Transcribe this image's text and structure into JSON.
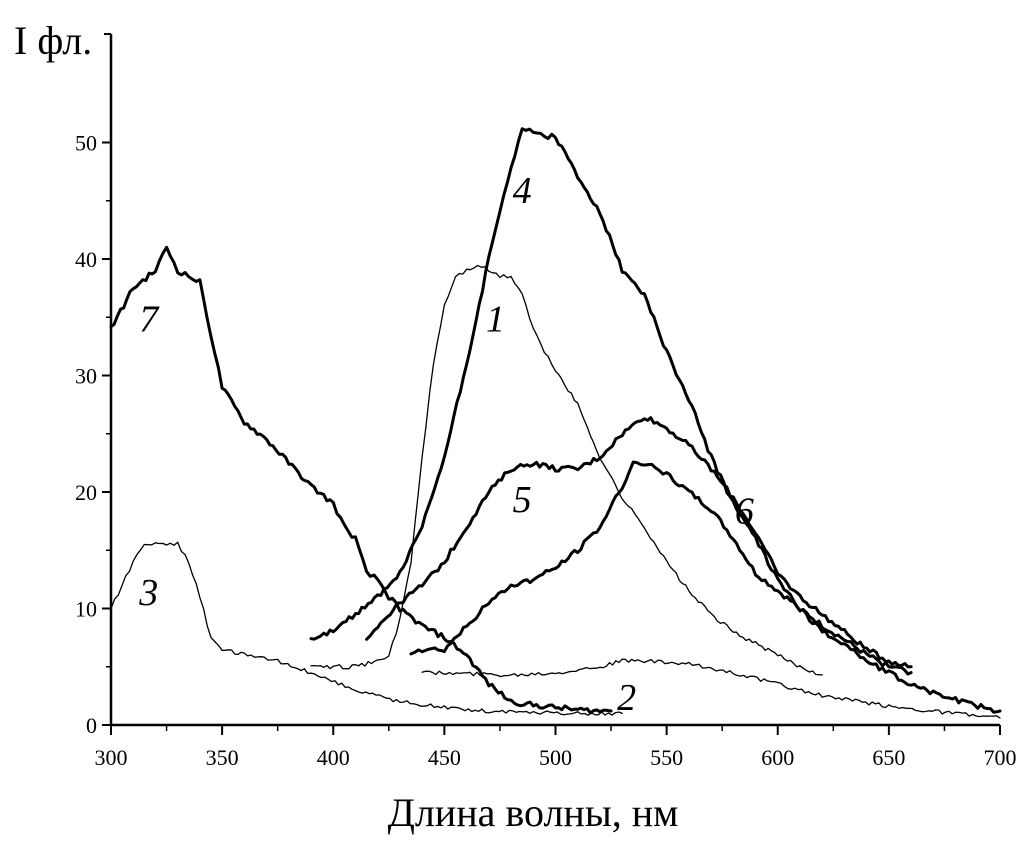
{
  "chart_data": {
    "type": "line",
    "title": "",
    "xlabel": "Длина волны, нм",
    "ylabel": "I фл.",
    "xlim": [
      300,
      700
    ],
    "ylim": [
      0,
      52
    ],
    "xticks": [
      300,
      350,
      400,
      450,
      500,
      550,
      600,
      650,
      700
    ],
    "yticks": [
      0,
      10,
      20,
      30,
      40,
      50
    ],
    "grid": false,
    "legend": "none",
    "series": [
      {
        "name": "1",
        "weight": "thin",
        "x": [
          390,
          400,
          410,
          420,
          425,
          430,
          435,
          440,
          445,
          450,
          455,
          460,
          465,
          470,
          475,
          480,
          485,
          490,
          495,
          500,
          510,
          520,
          530,
          540,
          550,
          560,
          570,
          580,
          590,
          600,
          610,
          620
        ],
        "y": [
          5,
          5,
          5,
          5.5,
          6,
          9,
          14,
          23,
          31,
          36,
          38.5,
          39,
          39.5,
          39,
          38.5,
          38.5,
          37,
          34,
          32,
          30.5,
          27.5,
          23,
          19.5,
          17,
          14,
          11.5,
          9.5,
          8,
          7,
          6,
          5,
          4.3
        ],
        "label_at": [
          473,
          35
        ]
      },
      {
        "name": "2",
        "weight": "thin",
        "x": [
          440,
          460,
          480,
          500,
          520,
          530,
          540,
          560,
          580,
          600,
          620,
          650,
          680,
          700
        ],
        "y": [
          4.5,
          4.4,
          4.3,
          4.5,
          5,
          5.5,
          5.5,
          5.2,
          4.5,
          3.5,
          2.5,
          1.6,
          1,
          0.6
        ],
        "label_at": [
          532,
          2.5
        ]
      },
      {
        "name": "3",
        "weight": "thin",
        "x": [
          300,
          305,
          310,
          315,
          320,
          325,
          330,
          335,
          340,
          345,
          350,
          360,
          375,
          390,
          410,
          430,
          450,
          470,
          490,
          510,
          530
        ],
        "y": [
          10,
          12,
          14,
          15.5,
          15.7,
          15.4,
          15.6,
          14,
          11,
          7.5,
          6.5,
          6,
          5.5,
          4.5,
          3,
          2,
          1.5,
          1.2,
          1.1,
          1,
          1
        ],
        "label_at": [
          317,
          11.5
        ]
      },
      {
        "name": "4",
        "weight": "thick",
        "x": [
          390,
          400,
          410,
          420,
          430,
          440,
          450,
          460,
          470,
          475,
          480,
          485,
          490,
          495,
          500,
          510,
          520,
          530,
          540,
          550,
          560,
          570,
          580,
          590,
          600,
          610,
          620,
          630,
          640,
          650,
          660,
          670,
          680,
          690,
          700
        ],
        "y": [
          7.5,
          8,
          9.5,
          11,
          13,
          17,
          23,
          31,
          40,
          44,
          48,
          51,
          51,
          50.5,
          50.5,
          47,
          44,
          39,
          37,
          32,
          28,
          23,
          19,
          16,
          12.5,
          10,
          8,
          7,
          5.5,
          4.5,
          3.5,
          2.8,
          2.2,
          1.6,
          1.2
        ],
        "label_at": [
          485,
          46
        ]
      },
      {
        "name": "5",
        "weight": "thick",
        "x": [
          415,
          420,
          430,
          440,
          450,
          460,
          470,
          480,
          490,
          500,
          510,
          520,
          530,
          540,
          550,
          560,
          570,
          580,
          590,
          600,
          610,
          620,
          630,
          640,
          650,
          660
        ],
        "y": [
          7.5,
          8.5,
          10.5,
          12,
          14,
          17,
          20,
          22,
          22.5,
          22,
          22,
          23,
          25,
          26.5,
          25.5,
          24,
          22,
          19.5,
          16.5,
          13,
          11,
          9.5,
          8,
          6.5,
          5.5,
          5
        ],
        "label_at": [
          485,
          19.5
        ]
      },
      {
        "name": "6",
        "weight": "thick",
        "x": [
          435,
          440,
          450,
          460,
          470,
          480,
          490,
          500,
          510,
          520,
          530,
          535,
          540,
          545,
          550,
          560,
          570,
          580,
          590,
          600,
          610,
          620,
          630,
          640,
          650,
          660
        ],
        "y": [
          6.3,
          6.5,
          6.5,
          8.5,
          10.5,
          12,
          12.5,
          13.5,
          15,
          17,
          20.5,
          22.5,
          22.5,
          22,
          21.5,
          20,
          18.5,
          16,
          13,
          11.5,
          10,
          8.5,
          7.3,
          6,
          5,
          4.5
        ],
        "label_at": [
          585,
          18.5
        ]
      },
      {
        "name": "7",
        "weight": "thick",
        "x": [
          300,
          310,
          320,
          325,
          330,
          335,
          340,
          345,
          350,
          360,
          370,
          380,
          390,
          400,
          405,
          410,
          415,
          420,
          425,
          430,
          440,
          450,
          460,
          470,
          480,
          490,
          500,
          510,
          520,
          525
        ],
        "y": [
          34,
          37.5,
          39,
          41,
          39,
          38.5,
          38,
          33.5,
          29,
          26,
          24.5,
          22.5,
          20.5,
          19,
          17,
          16,
          13,
          12.5,
          11,
          10,
          8.5,
          7.5,
          6,
          3.5,
          2,
          1.7,
          1.5,
          1.3,
          1.2,
          1.2
        ],
        "label_at": [
          317,
          35
        ]
      }
    ]
  }
}
